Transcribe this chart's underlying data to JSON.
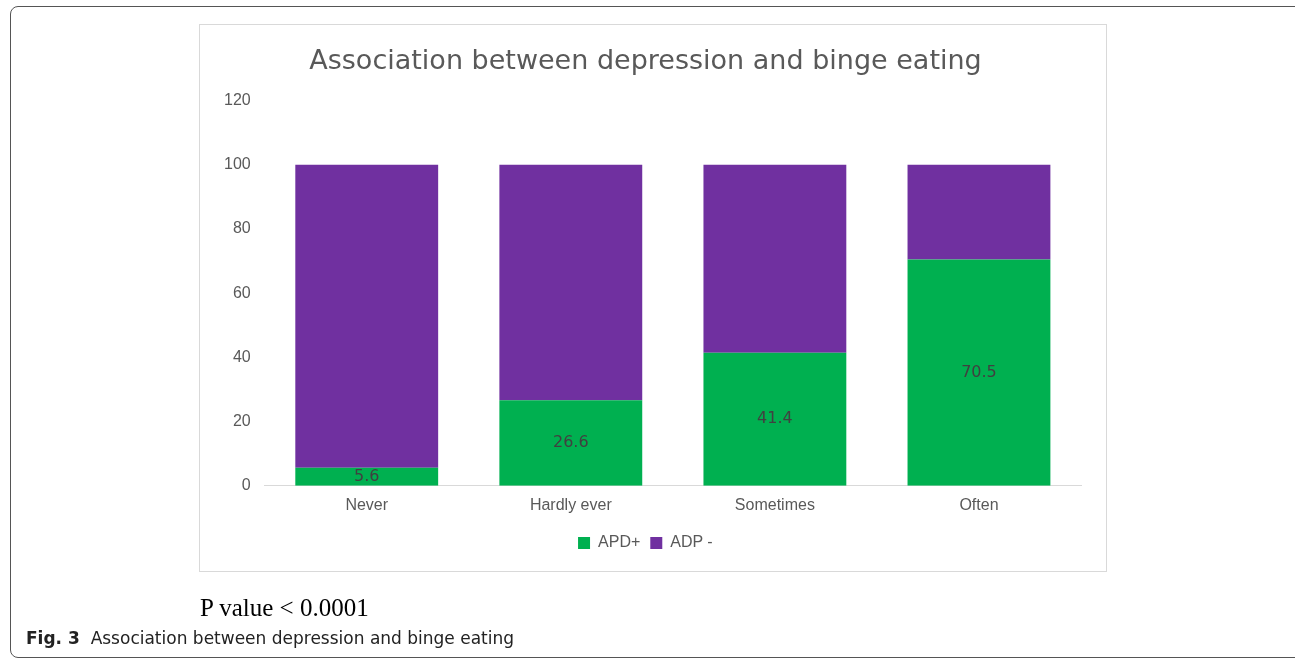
{
  "chart_data": {
    "type": "bar",
    "title": "Association between depression and binge eating",
    "categories": [
      "Never",
      "Hardly ever",
      "Sometimes",
      "Often"
    ],
    "stacked": true,
    "series": [
      {
        "name": "APD+",
        "color": "#00b050",
        "values": [
          5.6,
          26.6,
          41.4,
          70.5
        ],
        "value_labels": [
          "5.6",
          "26.6",
          "41.4",
          "70.5"
        ]
      },
      {
        "name": "ADP -",
        "color": "#7030a0",
        "values": [
          94.4,
          73.4,
          58.6,
          29.5
        ]
      }
    ],
    "ylim": [
      0,
      120
    ],
    "yticks": [
      0,
      20,
      40,
      60,
      80,
      100,
      120
    ],
    "grid": false,
    "legend": "bottom",
    "annotations": [
      "P value < 0.0001",
      "Fig. 3  Association between depression and binge eating"
    ]
  }
}
